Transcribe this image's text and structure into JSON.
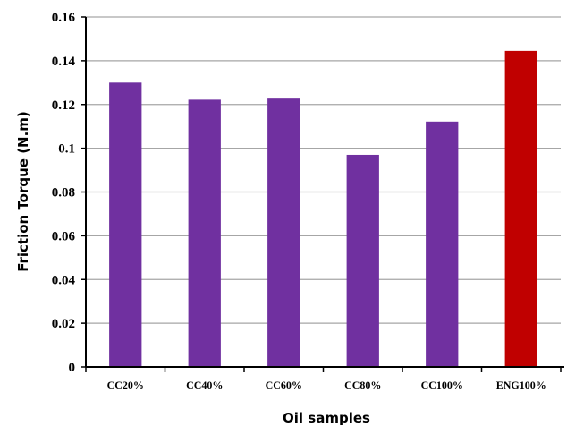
{
  "chart_data": {
    "type": "bar",
    "title": "",
    "xlabel": "Oil samples",
    "ylabel": "Friction Torque  (N.m)",
    "ylim": [
      0,
      0.16
    ],
    "yticks": [
      "0",
      "0.02",
      "0.04",
      "0.06",
      "0.08",
      "0.1",
      "0.12",
      "0.14",
      "0.16"
    ],
    "grid": true,
    "legend": "none",
    "categories": [
      "CC20%",
      "CC40%",
      "CC60%",
      "CC80%",
      "CC100%",
      "ENG100%"
    ],
    "values": [
      0.13,
      0.1222,
      0.1227,
      0.097,
      0.1122,
      0.1445
    ],
    "colors": [
      "#7030A0",
      "#7030A0",
      "#7030A0",
      "#7030A0",
      "#7030A0",
      "#C00000"
    ],
    "grid_color": "#a6a6a6",
    "axis_color": "#000000"
  }
}
